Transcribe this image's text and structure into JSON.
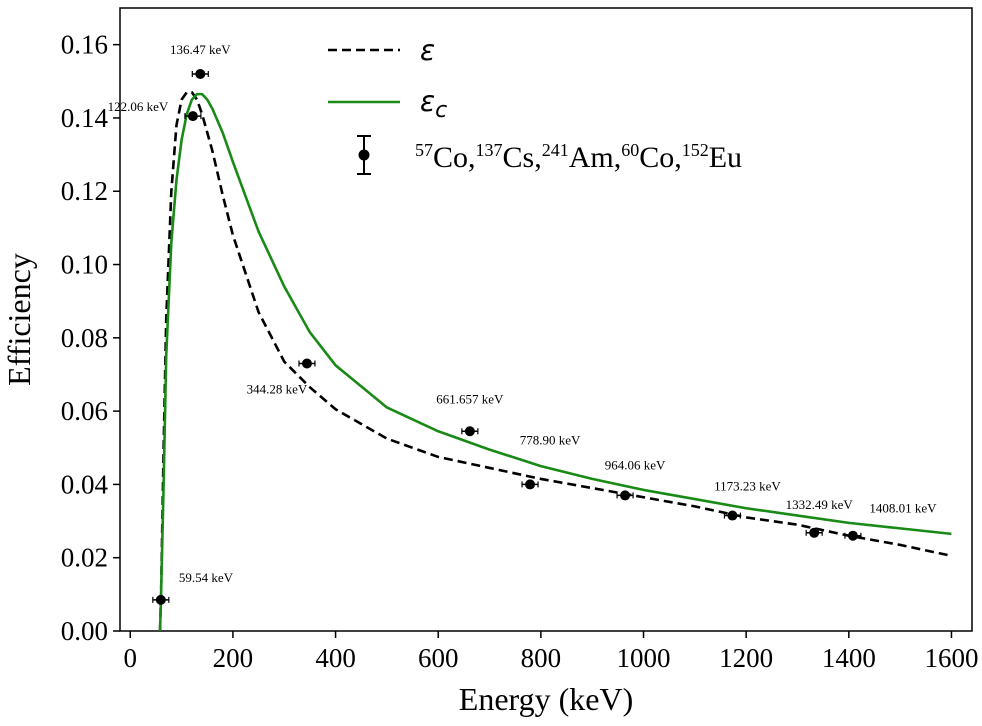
{
  "chart_data": {
    "type": "line",
    "xlabel": "Energy (keV)",
    "ylabel": "Efficiency",
    "xlim": [
      -20,
      1640
    ],
    "ylim": [
      0,
      0.17
    ],
    "xticks": [
      0,
      200,
      400,
      600,
      800,
      1000,
      1200,
      1400,
      1600
    ],
    "yticks": [
      0.0,
      0.02,
      0.04,
      0.06,
      0.08,
      0.1,
      0.12,
      0.14,
      0.16
    ],
    "ytick_labels": [
      "0.00",
      "0.02",
      "0.04",
      "0.06",
      "0.08",
      "0.10",
      "0.12",
      "0.14",
      "0.16"
    ],
    "grid": false,
    "legend_position": "top-center",
    "series": [
      {
        "name": "ε",
        "style": "dashed",
        "color": "#000000",
        "x": [
          58,
          60,
          65,
          70,
          80,
          90,
          100,
          110,
          120,
          130,
          140,
          160,
          180,
          200,
          250,
          300,
          350,
          400,
          500,
          600,
          700,
          800,
          900,
          1000,
          1100,
          1200,
          1300,
          1400,
          1500,
          1600
        ],
        "y": [
          0.0,
          0.01,
          0.05,
          0.085,
          0.12,
          0.138,
          0.145,
          0.147,
          0.147,
          0.145,
          0.141,
          0.131,
          0.119,
          0.108,
          0.087,
          0.0735,
          0.0665,
          0.0605,
          0.0525,
          0.0475,
          0.0445,
          0.0415,
          0.039,
          0.0365,
          0.034,
          0.031,
          0.029,
          0.026,
          0.0235,
          0.0205
        ]
      },
      {
        "name": "ε_c",
        "style": "solid",
        "color": "#1a8a17",
        "x": [
          58,
          60,
          65,
          70,
          80,
          90,
          100,
          110,
          120,
          130,
          140,
          150,
          160,
          180,
          200,
          250,
          300,
          350,
          400,
          500,
          600,
          700,
          800,
          900,
          1000,
          1100,
          1200,
          1300,
          1400,
          1500,
          1600
        ],
        "y": [
          0.0,
          0.01,
          0.04,
          0.075,
          0.106,
          0.123,
          0.134,
          0.141,
          0.145,
          0.1465,
          0.1465,
          0.145,
          0.1425,
          0.136,
          0.128,
          0.109,
          0.094,
          0.0815,
          0.0725,
          0.061,
          0.0545,
          0.0495,
          0.045,
          0.0415,
          0.0385,
          0.036,
          0.0335,
          0.0315,
          0.0295,
          0.028,
          0.0265
        ]
      }
    ],
    "points": {
      "name": "57Co,137Cs,241Am,60Co,152Eu",
      "color": "#000000",
      "values": [
        {
          "x": 59.54,
          "y": 0.0085,
          "label": "59.54 keV"
        },
        {
          "x": 122.06,
          "y": 0.1405,
          "label": "122.06 keV"
        },
        {
          "x": 136.47,
          "y": 0.152,
          "label": "136.47 keV"
        },
        {
          "x": 344.28,
          "y": 0.073,
          "label": "344.28 keV"
        },
        {
          "x": 661.657,
          "y": 0.0545,
          "label": "661.657 keV"
        },
        {
          "x": 778.9,
          "y": 0.04,
          "label": "778.90 keV"
        },
        {
          "x": 964.06,
          "y": 0.037,
          "label": "964.06 keV"
        },
        {
          "x": 1173.23,
          "y": 0.0315,
          "label": "1173.23 keV"
        },
        {
          "x": 1332.49,
          "y": 0.0268,
          "label": "1332.49 keV"
        },
        {
          "x": 1408.01,
          "y": 0.026,
          "label": "1408.01 keV"
        }
      ]
    },
    "legend": {
      "dashed_symbol": "ε",
      "solid_symbol": "ε",
      "solid_subscript": "c",
      "points_parts": [
        {
          "sup": "57",
          "text": "Co,"
        },
        {
          "sup": "137",
          "text": "Cs,"
        },
        {
          "sup": "241",
          "text": "Am,"
        },
        {
          "sup": "60",
          "text": "Co,"
        },
        {
          "sup": "152",
          "text": "Eu"
        }
      ]
    }
  }
}
